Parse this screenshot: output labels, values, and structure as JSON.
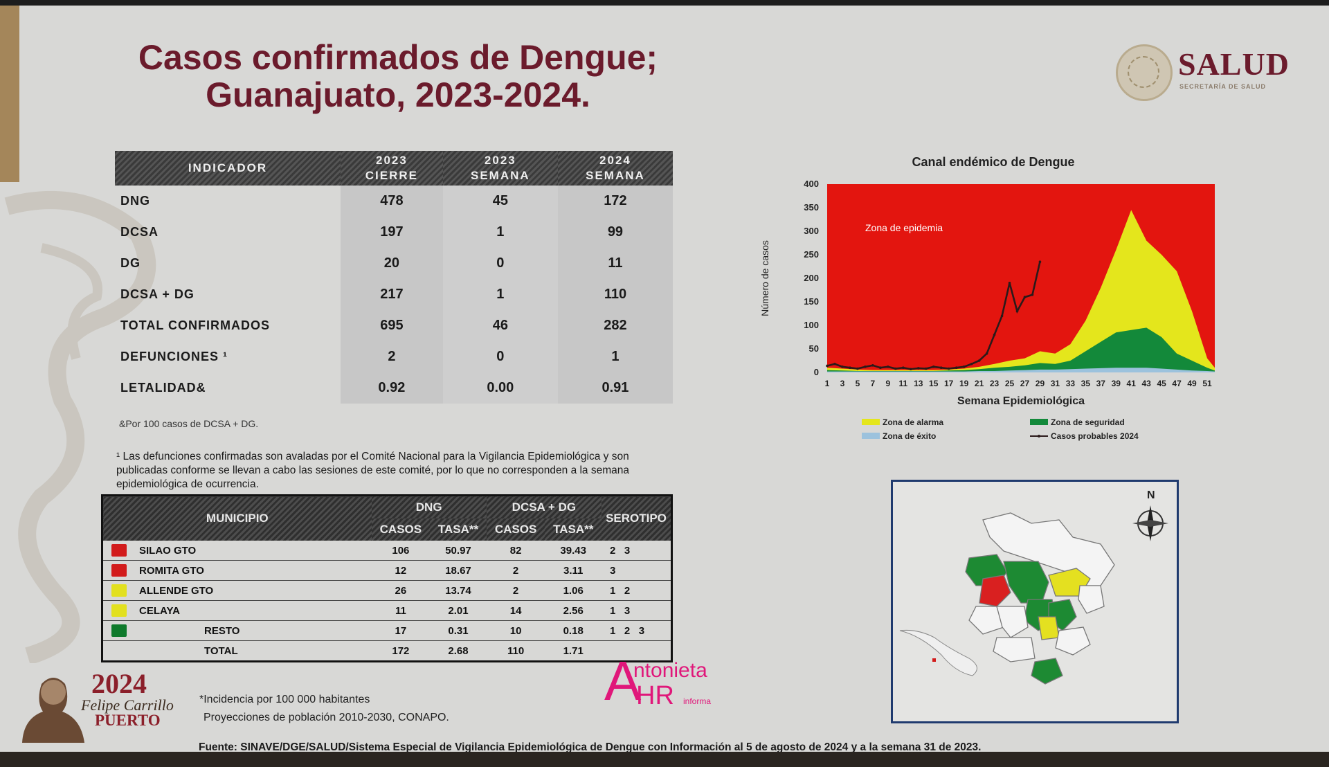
{
  "title_line1": "Casos confirmados de Dengue;",
  "title_line2": "Guanajuato, 2023-2024.",
  "brand": {
    "name": "SALUD",
    "subtitle": "SECRETARÍA DE SALUD"
  },
  "indicator_table": {
    "headers": [
      {
        "line1": "INDICADOR",
        "line2": ""
      },
      {
        "line1": "2023",
        "line2": "CIERRE"
      },
      {
        "line1": "2023",
        "line2": "SEMANA"
      },
      {
        "line1": "2024",
        "line2": "SEMANA"
      }
    ],
    "rows": [
      {
        "label": "DNG",
        "v1": "478",
        "v2": "45",
        "v3": "172"
      },
      {
        "label": "DCSA",
        "v1": "197",
        "v2": "1",
        "v3": "99"
      },
      {
        "label": "DG",
        "v1": "20",
        "v2": "0",
        "v3": "11"
      },
      {
        "label": "DCSA + DG",
        "v1": "217",
        "v2": "1",
        "v3": "110"
      },
      {
        "label": "TOTAL CONFIRMADOS",
        "v1": "695",
        "v2": "46",
        "v3": "282"
      },
      {
        "label": "DEFUNCIONES ¹",
        "v1": "2",
        "v2": "0",
        "v3": "1"
      },
      {
        "label": "LETALIDAD&",
        "v1": "0.92",
        "v2": "0.00",
        "v3": "0.91"
      }
    ]
  },
  "note_letalidad": "&Por 100 casos de DCSA + DG.",
  "note_defunciones": "¹ Las defunciones confirmadas son avaladas por el Comité Nacional para la Vigilancia Epidemiológica y son publicadas conforme se llevan a cabo las sesiones de este comité, por lo que no corresponden a la semana epidemiológica de ocurrencia.",
  "municipio_table": {
    "h_municipio": "MUNICIPIO",
    "h_dng": "DNG",
    "h_dcsa": "DCSA + DG",
    "h_serotipo": "SEROTIPO",
    "h_casos": "CASOS",
    "h_tasa": "TASA**",
    "rows": [
      {
        "color": "#d21b1b",
        "name": "SILAO GTO",
        "dng_casos": "106",
        "dng_tasa": "50.97",
        "dcsa_casos": "82",
        "dcsa_tasa": "39.43",
        "serotipo": "2   3"
      },
      {
        "color": "#d21b1b",
        "name": "ROMITA GTO",
        "dng_casos": "12",
        "dng_tasa": "18.67",
        "dcsa_casos": "2",
        "dcsa_tasa": "3.11",
        "serotipo": "3"
      },
      {
        "color": "#e2e01f",
        "name": "ALLENDE GTO",
        "dng_casos": "26",
        "dng_tasa": "13.74",
        "dcsa_casos": "2",
        "dcsa_tasa": "1.06",
        "serotipo": "1   2"
      },
      {
        "color": "#e2e01f",
        "name": "CELAYA",
        "dng_casos": "11",
        "dng_tasa": "2.01",
        "dcsa_casos": "14",
        "dcsa_tasa": "2.56",
        "serotipo": "1   3"
      },
      {
        "color": "#0f7a2c",
        "name": "RESTO",
        "dng_casos": "17",
        "dng_tasa": "0.31",
        "dcsa_casos": "10",
        "dcsa_tasa": "0.18",
        "serotipo": "1   2   3"
      }
    ],
    "total": {
      "name": "TOTAL",
      "dng_casos": "172",
      "dng_tasa": "2.68",
      "dcsa_casos": "110",
      "dcsa_tasa": "1.71"
    }
  },
  "footnote_incidence": "*Incidencia por 100 000 habitantes",
  "footnote_projection": "Proyecciones de población 2010-2030, CONAPO.",
  "fuente": "Fuente: SINAVE/DGE/SALUD/Sistema Especial de Vigilancia Epidemiológica de Dengue con Información al 5 de agosto de 2024 y a la semana 31 de 2023.",
  "logo_2024": {
    "year": "2024",
    "name1": "Felipe Carrillo",
    "name2": "PUERTO"
  },
  "watermark_brand": {
    "a": "A",
    "ntonieta": "ntonieta",
    "hr": "HR",
    "informa": "informa"
  },
  "map": {
    "north_label": "N"
  },
  "chart_data": {
    "type": "area",
    "title": "Canal endémico de Dengue",
    "xlabel": "Semana Epidemiológica",
    "ylabel": "Número de casos",
    "xlim": [
      1,
      52
    ],
    "ylim": [
      0,
      400
    ],
    "yticks": [
      0,
      50,
      100,
      150,
      200,
      250,
      300,
      350,
      400
    ],
    "xtick_labels": [
      "1",
      "3",
      "5",
      "7",
      "9",
      "11",
      "13",
      "15",
      "17",
      "19",
      "21",
      "23",
      "25",
      "27",
      "29",
      "31",
      "33",
      "35",
      "37",
      "39",
      "41",
      "43",
      "45",
      "47",
      "49",
      "51"
    ],
    "annotation": "Zona de epidemia",
    "legend_position": "bottom",
    "colors": {
      "epidemia": "#e3150f",
      "alarma": "#e4e61c",
      "seguridad": "#13893a",
      "exito": "#9cc2dd",
      "casos": "#2b1a1a"
    },
    "weeks": [
      1,
      3,
      5,
      7,
      9,
      11,
      13,
      15,
      17,
      19,
      21,
      23,
      25,
      27,
      29,
      31,
      33,
      35,
      37,
      39,
      41,
      43,
      45,
      47,
      49,
      51,
      52
    ],
    "series": [
      {
        "name": "Zona de alarma",
        "values": [
          10,
          8,
          6,
          5,
          5,
          5,
          5,
          5,
          6,
          8,
          12,
          18,
          25,
          30,
          45,
          40,
          60,
          110,
          180,
          260,
          345,
          280,
          250,
          215,
          130,
          30,
          10
        ]
      },
      {
        "name": "Zona de seguridad",
        "values": [
          5,
          4,
          3,
          3,
          3,
          3,
          3,
          3,
          4,
          5,
          7,
          10,
          12,
          15,
          20,
          18,
          25,
          45,
          65,
          85,
          90,
          95,
          75,
          40,
          25,
          10,
          4
        ]
      },
      {
        "name": "Zona de éxito",
        "values": [
          2,
          2,
          2,
          2,
          2,
          2,
          2,
          2,
          2,
          2,
          3,
          3,
          4,
          5,
          6,
          6,
          7,
          8,
          9,
          10,
          10,
          10,
          8,
          6,
          4,
          3,
          2
        ]
      }
    ],
    "line_series": {
      "name": "Casos probables 2024",
      "x": [
        1,
        2,
        3,
        4,
        5,
        6,
        7,
        8,
        9,
        10,
        11,
        12,
        13,
        14,
        15,
        16,
        17,
        18,
        19,
        20,
        21,
        22,
        23,
        24,
        25,
        26,
        27,
        28,
        29
      ],
      "values": [
        14,
        18,
        12,
        10,
        8,
        12,
        15,
        10,
        12,
        8,
        10,
        7,
        9,
        8,
        12,
        10,
        8,
        10,
        12,
        18,
        25,
        40,
        80,
        120,
        190,
        130,
        160,
        165,
        235
      ]
    }
  }
}
